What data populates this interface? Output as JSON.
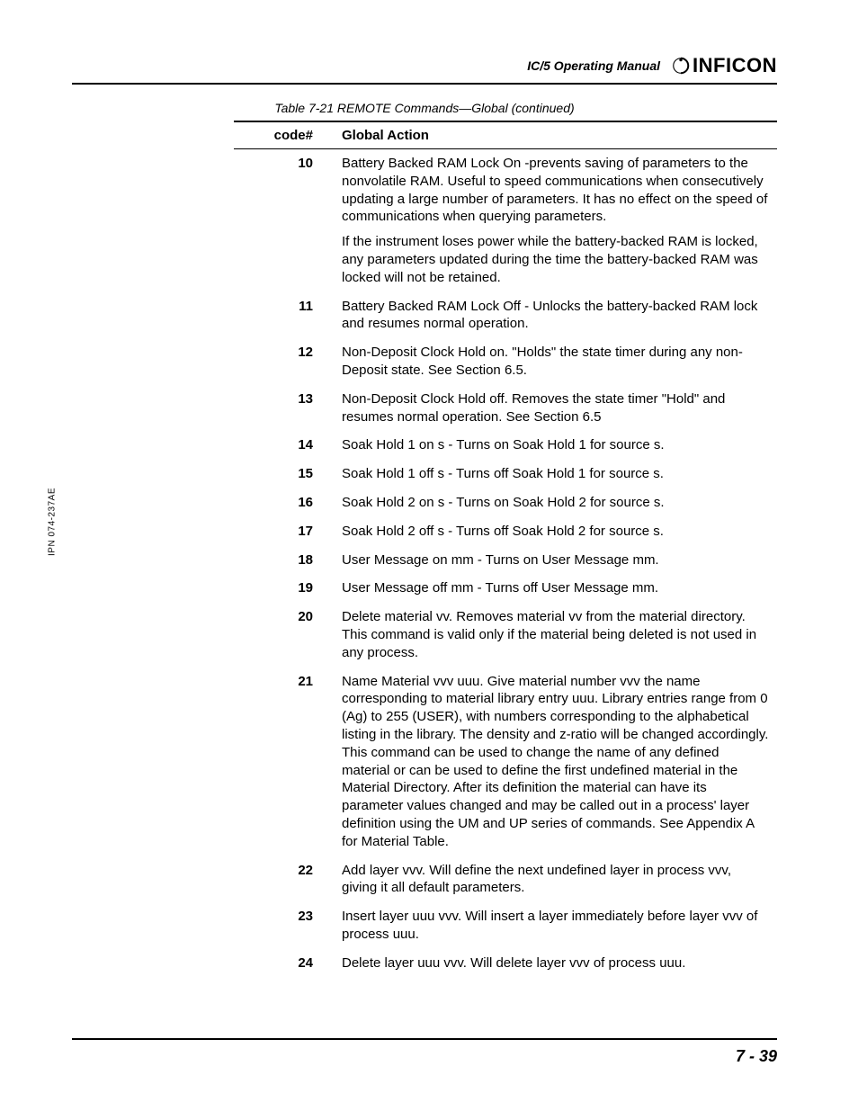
{
  "header": {
    "manual_title": "IC/5 Operating Manual",
    "logo_text": "INFICON"
  },
  "side_label": "IPN 074-237AE",
  "table": {
    "caption": "Table 7-21  REMOTE Commands—Global (continued)",
    "columns": {
      "code": "code#",
      "action": "Global Action"
    },
    "rows": [
      {
        "code": "10",
        "action_paragraphs": [
          "Battery Backed RAM Lock On -prevents saving of parameters to the nonvolatile RAM. Useful to speed communications when consecutively updating a large number of parameters. It has no effect on the speed of communications when querying parameters.",
          "If the instrument loses power while the battery-backed RAM is locked, any parameters updated during the time the battery-backed RAM was locked will not be retained."
        ]
      },
      {
        "code": "11",
        "action_paragraphs": [
          "Battery Backed RAM Lock Off - Unlocks the battery-backed RAM lock and resumes normal operation."
        ]
      },
      {
        "code": "12",
        "action_paragraphs": [
          "Non-Deposit Clock Hold on. \"Holds\" the state timer during any non-Deposit state. See Section 6.5."
        ]
      },
      {
        "code": "13",
        "action_paragraphs": [
          "Non-Deposit Clock Hold off. Removes the state timer \"Hold\" and resumes normal operation. See Section 6.5"
        ]
      },
      {
        "code": "14",
        "action_paragraphs": [
          "Soak Hold 1 on s - Turns on Soak Hold 1 for source s."
        ]
      },
      {
        "code": "15",
        "action_paragraphs": [
          "Soak Hold 1 off s - Turns off Soak Hold 1 for source s."
        ]
      },
      {
        "code": "16",
        "action_paragraphs": [
          "Soak Hold 2 on s - Turns on Soak Hold 2 for source s."
        ]
      },
      {
        "code": "17",
        "action_paragraphs": [
          "Soak Hold 2 off s - Turns off Soak Hold 2 for source s."
        ]
      },
      {
        "code": "18",
        "action_paragraphs": [
          "User Message on mm - Turns on User Message mm."
        ]
      },
      {
        "code": "19",
        "action_paragraphs": [
          "User Message off mm - Turns off User Message mm."
        ]
      },
      {
        "code": "20",
        "action_paragraphs": [
          "Delete material vv. Removes material vv from the material directory. This command is valid only if the material being deleted is not used in any process."
        ]
      },
      {
        "code": "21",
        "action_paragraphs": [
          "Name Material vvv uuu. Give material number vvv the name corresponding to material library entry uuu. Library entries range from 0 (Ag) to 255 (USER), with numbers corresponding to the alphabetical listing in the library. The density and z-ratio will be changed accordingly. This command can be used to change the name of any defined material or can be used to define the first undefined material in the Material Directory. After its definition the material can have its parameter values changed and may be called out in a process' layer definition using the UM and UP series of commands. See Appendix A for Material Table."
        ]
      },
      {
        "code": "22",
        "action_paragraphs": [
          "Add layer vvv. Will define the next undefined layer in process vvv, giving it all default parameters."
        ]
      },
      {
        "code": "23",
        "action_paragraphs": [
          "Insert layer uuu vvv. Will insert a layer immediately before layer vvv of process uuu."
        ]
      },
      {
        "code": "24",
        "action_paragraphs": [
          "Delete layer uuu vvv. Will delete layer vvv of process uuu."
        ]
      }
    ]
  },
  "footer": {
    "page_number": "7 - 39"
  }
}
